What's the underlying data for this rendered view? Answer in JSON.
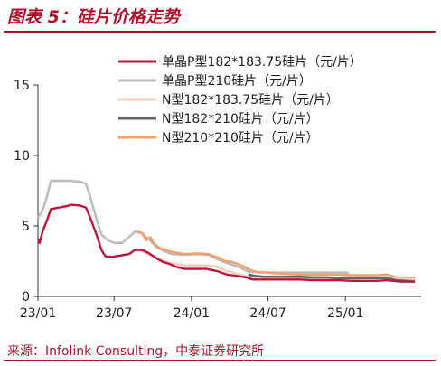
{
  "figure_title": "图表 5：硅片价格走势",
  "source_note": "来源：Infolink Consulting，中泰证券研究所",
  "chart_data": {
    "type": "line",
    "title": "",
    "xlabel": "",
    "ylabel": "",
    "x_tick_labels": [
      "23/01",
      "23/07",
      "24/01",
      "24/07",
      "25/01"
    ],
    "y_ticks": [
      "0",
      "5",
      "10",
      "15"
    ],
    "ylim": [
      0,
      15
    ],
    "grid": false,
    "legend_position": "top-right",
    "series": [
      {
        "name": "单晶P型182*183.75硅片（元/片）",
        "color": "#c0143c",
        "points": [
          [
            "2023-01-01",
            4.1
          ],
          [
            "2023-01-05",
            3.8
          ],
          [
            "2023-01-12",
            4.6
          ],
          [
            "2023-01-20",
            5.2
          ],
          [
            "2023-02-01",
            6.2
          ],
          [
            "2023-02-20",
            6.3
          ],
          [
            "2023-03-10",
            6.4
          ],
          [
            "2023-03-20",
            6.5
          ],
          [
            "2023-04-10",
            6.45
          ],
          [
            "2023-04-25",
            6.3
          ],
          [
            "2023-05-05",
            5.6
          ],
          [
            "2023-05-20",
            4.4
          ],
          [
            "2023-06-01",
            3.3
          ],
          [
            "2023-06-10",
            2.85
          ],
          [
            "2023-06-25",
            2.8
          ],
          [
            "2023-07-15",
            2.9
          ],
          [
            "2023-08-05",
            3.0
          ],
          [
            "2023-08-20",
            3.3
          ],
          [
            "2023-09-05",
            3.3
          ],
          [
            "2023-09-20",
            3.1
          ],
          [
            "2023-10-10",
            2.7
          ],
          [
            "2023-10-25",
            2.45
          ],
          [
            "2023-11-10",
            2.3
          ],
          [
            "2023-11-25",
            2.1
          ],
          [
            "2023-12-15",
            1.95
          ],
          [
            "2024-01-10",
            1.95
          ],
          [
            "2024-02-05",
            1.95
          ],
          [
            "2024-03-01",
            1.8
          ],
          [
            "2024-03-25",
            1.55
          ],
          [
            "2024-04-20",
            1.45
          ],
          [
            "2024-05-10",
            1.35
          ],
          [
            "2024-05-25",
            1.2
          ],
          [
            "2024-06-15",
            1.2
          ],
          [
            "2024-07-15",
            1.2
          ],
          [
            "2024-08-15",
            1.2
          ],
          [
            "2024-09-15",
            1.2
          ],
          [
            "2024-10-15",
            1.15
          ],
          [
            "2024-11-15",
            1.15
          ],
          [
            "2024-12-15",
            1.15
          ],
          [
            "2025-01-15",
            1.1
          ],
          [
            "2025-02-15",
            1.1
          ],
          [
            "2025-03-15",
            1.1
          ],
          [
            "2025-04-10",
            1.15
          ],
          [
            "2025-05-10",
            1.05
          ],
          [
            "2025-06-15",
            1.05
          ]
        ]
      },
      {
        "name": "单晶P型210硅片（元/片）",
        "color": "#bdbdbd",
        "points": [
          [
            "2023-01-01",
            5.6
          ],
          [
            "2023-01-10",
            6.0
          ],
          [
            "2023-01-20",
            6.8
          ],
          [
            "2023-02-01",
            8.2
          ],
          [
            "2023-02-20",
            8.2
          ],
          [
            "2023-03-15",
            8.2
          ],
          [
            "2023-04-10",
            8.15
          ],
          [
            "2023-04-25",
            8.0
          ],
          [
            "2023-05-05",
            7.1
          ],
          [
            "2023-05-20",
            5.5
          ],
          [
            "2023-06-01",
            4.4
          ],
          [
            "2023-06-15",
            4.0
          ],
          [
            "2023-07-01",
            3.8
          ],
          [
            "2023-07-20",
            3.8
          ],
          [
            "2023-08-05",
            4.2
          ],
          [
            "2023-08-20",
            4.6
          ],
          [
            "2023-09-05",
            4.5
          ],
          [
            "2023-09-20",
            4.1
          ],
          [
            "2023-10-10",
            3.5
          ],
          [
            "2023-10-25",
            3.25
          ],
          [
            "2023-11-15",
            3.0
          ],
          [
            "2023-12-15",
            2.95
          ],
          [
            "2024-01-15",
            3.0
          ],
          [
            "2024-02-10",
            2.95
          ],
          [
            "2024-03-05",
            2.6
          ],
          [
            "2024-04-01",
            2.3
          ],
          [
            "2024-04-25",
            2.05
          ],
          [
            "2024-05-15",
            1.75
          ],
          [
            "2024-06-10",
            1.7
          ],
          [
            "2024-07-15",
            1.7
          ],
          [
            "2024-08-15",
            1.7
          ],
          [
            "2024-09-15",
            1.7
          ],
          [
            "2024-10-15",
            1.7
          ],
          [
            "2024-11-15",
            1.7
          ],
          [
            "2024-12-15",
            1.7
          ],
          [
            "2025-01-05",
            1.7
          ],
          [
            "2025-01-20",
            1.1
          ],
          [
            "2025-02-20",
            1.1
          ],
          [
            "2025-03-25",
            1.1
          ]
        ]
      },
      {
        "name": "N型182*183.75硅片（元/片）",
        "color": "#f4cfbf",
        "points": [
          [
            "2023-09-01",
            3.3
          ],
          [
            "2023-09-20",
            3.0
          ],
          [
            "2023-10-10",
            2.75
          ],
          [
            "2023-10-25",
            2.55
          ],
          [
            "2023-11-15",
            2.35
          ],
          [
            "2023-12-15",
            2.2
          ],
          [
            "2024-01-15",
            2.2
          ],
          [
            "2024-02-10",
            2.2
          ],
          [
            "2024-03-01",
            2.1
          ],
          [
            "2024-03-25",
            1.8
          ],
          [
            "2024-04-20",
            1.6
          ],
          [
            "2024-05-10",
            1.45
          ],
          [
            "2024-05-25",
            1.35
          ],
          [
            "2024-06-15",
            1.3
          ],
          [
            "2024-07-15",
            1.3
          ],
          [
            "2024-08-15",
            1.3
          ],
          [
            "2024-09-15",
            1.3
          ],
          [
            "2024-10-15",
            1.25
          ],
          [
            "2024-11-15",
            1.25
          ],
          [
            "2024-12-15",
            1.25
          ],
          [
            "2025-01-15",
            1.25
          ],
          [
            "2025-02-15",
            1.3
          ],
          [
            "2025-03-15",
            1.35
          ],
          [
            "2025-04-10",
            1.4
          ],
          [
            "2025-05-01",
            1.25
          ],
          [
            "2025-06-15",
            1.2
          ]
        ]
      },
      {
        "name": "N型182*210硅片（元/片）",
        "color": "#666666",
        "points": [
          [
            "2024-05-15",
            1.55
          ],
          [
            "2024-06-01",
            1.45
          ],
          [
            "2024-06-20",
            1.4
          ],
          [
            "2024-07-15",
            1.4
          ],
          [
            "2024-08-15",
            1.4
          ],
          [
            "2024-09-15",
            1.4
          ],
          [
            "2024-10-15",
            1.35
          ],
          [
            "2024-11-15",
            1.35
          ],
          [
            "2024-12-15",
            1.3
          ],
          [
            "2025-01-15",
            1.3
          ],
          [
            "2025-02-15",
            1.3
          ],
          [
            "2025-03-15",
            1.3
          ],
          [
            "2025-04-10",
            1.3
          ],
          [
            "2025-05-01",
            1.15
          ],
          [
            "2025-05-25",
            1.1
          ],
          [
            "2025-06-15",
            1.05
          ]
        ]
      },
      {
        "name": "N型210*210硅片（元/片）",
        "color": "#f2a06c",
        "points": [
          [
            "2023-08-25",
            4.6
          ],
          [
            "2023-09-05",
            4.5
          ],
          [
            "2023-09-15",
            4.0
          ],
          [
            "2023-09-25",
            4.2
          ],
          [
            "2023-10-05",
            3.7
          ],
          [
            "2023-10-20",
            3.4
          ],
          [
            "2023-11-10",
            3.2
          ],
          [
            "2023-11-25",
            3.1
          ],
          [
            "2023-12-15",
            3.0
          ],
          [
            "2024-01-15",
            3.05
          ],
          [
            "2024-02-10",
            3.0
          ],
          [
            "2024-03-05",
            2.75
          ],
          [
            "2024-03-20",
            2.5
          ],
          [
            "2024-04-05",
            2.45
          ],
          [
            "2024-04-20",
            2.3
          ],
          [
            "2024-05-05",
            2.1
          ],
          [
            "2024-05-20",
            1.85
          ],
          [
            "2024-06-10",
            1.7
          ],
          [
            "2024-06-25",
            1.7
          ],
          [
            "2024-07-15",
            1.65
          ],
          [
            "2024-08-15",
            1.6
          ],
          [
            "2024-09-15",
            1.55
          ],
          [
            "2024-10-15",
            1.55
          ],
          [
            "2024-11-15",
            1.55
          ],
          [
            "2024-12-15",
            1.55
          ],
          [
            "2025-01-15",
            1.5
          ],
          [
            "2025-02-15",
            1.5
          ],
          [
            "2025-03-15",
            1.5
          ],
          [
            "2025-04-10",
            1.55
          ],
          [
            "2025-05-01",
            1.35
          ],
          [
            "2025-05-25",
            1.3
          ],
          [
            "2025-06-15",
            1.3
          ]
        ]
      }
    ]
  }
}
